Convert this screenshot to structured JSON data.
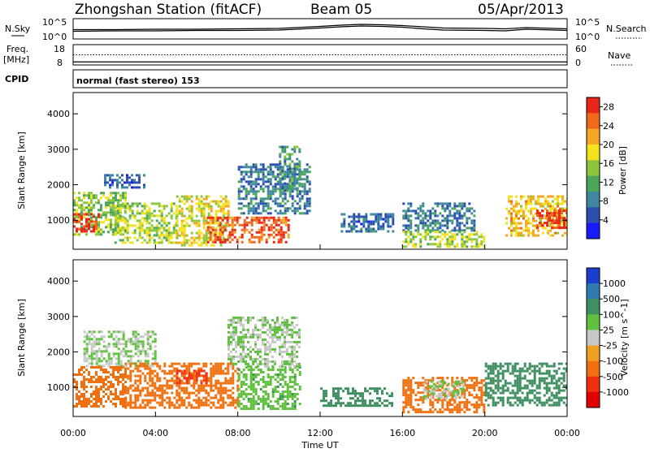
{
  "header": {
    "station": "Zhongshan Station (fitACF)",
    "beam": "Beam 05",
    "date": "05/Apr/2013"
  },
  "chart_data": [
    {
      "type": "line",
      "panel": "noise",
      "left_label": "N.Sky",
      "right_label": "N.Search",
      "left_ticks": [
        "10^5",
        "10^0"
      ],
      "right_ticks": [
        "10^5",
        "10^0"
      ],
      "right_line_style": "dotted",
      "x_hours": [
        0,
        2,
        4,
        6,
        8,
        10,
        12,
        13,
        14,
        15,
        16,
        17,
        18,
        20,
        21,
        22,
        24
      ],
      "series": [
        {
          "values": [
            2.3,
            2.3,
            2.4,
            2.4,
            2.5,
            2.6,
            3.1,
            3.4,
            3.6,
            3.5,
            3.3,
            3.0,
            2.7,
            2.6,
            2.5,
            2.8,
            2.5
          ]
        },
        {
          "values": [
            1.9,
            2.0,
            2.0,
            2.1,
            2.1,
            2.2,
            2.7,
            3.0,
            3.2,
            3.1,
            2.9,
            2.5,
            2.2,
            2.1,
            2.0,
            2.4,
            2.1
          ]
        }
      ]
    },
    {
      "type": "line",
      "panel": "frequency",
      "left_label": "Freq.",
      "left_unit": "[MHz]",
      "right_label": "Nave",
      "left_ticks": [
        "18",
        "8"
      ],
      "right_ticks": [
        "60",
        "0"
      ],
      "freq_mhz": 9.5,
      "nave": 30
    },
    {
      "type": "text",
      "panel": "cpid",
      "label": "CPID",
      "program": "normal (fast stereo) 153"
    },
    {
      "type": "heatmap",
      "panel": "power",
      "ylabel": "Slant Range [km]",
      "colorbar_label": "Power [dB]",
      "yticks": [
        1000,
        2000,
        3000,
        4000
      ],
      "ylim": [
        180,
        4600
      ],
      "colorbar_ticks": [
        "4",
        "8",
        "12",
        "16",
        "20",
        "24",
        "28"
      ],
      "clim": [
        0,
        30
      ],
      "colormap": [
        "#1a1aff",
        "#2a4fb0",
        "#3f86a0",
        "#4aa65a",
        "#8cc63f",
        "#f4e21c",
        "#f5a623",
        "#f06a1a",
        "#e8261a"
      ],
      "segments": [
        {
          "x0": 0.0,
          "x1": 2.5,
          "r0": 600,
          "r1": 1800,
          "level": 14
        },
        {
          "x0": 0.0,
          "x1": 1.2,
          "r0": 700,
          "r1": 1200,
          "level": 28
        },
        {
          "x0": 1.5,
          "x1": 3.5,
          "r0": 1900,
          "r1": 2300,
          "level": 6
        },
        {
          "x0": 2.0,
          "x1": 5.0,
          "r0": 400,
          "r1": 1500,
          "level": 16
        },
        {
          "x0": 5.0,
          "x1": 7.5,
          "r0": 300,
          "r1": 1700,
          "level": 18
        },
        {
          "x0": 6.5,
          "x1": 10.5,
          "r0": 350,
          "r1": 1100,
          "level": 26
        },
        {
          "x0": 8.0,
          "x1": 11.5,
          "r0": 1200,
          "r1": 2600,
          "level": 8
        },
        {
          "x0": 10.0,
          "x1": 11.0,
          "r0": 1800,
          "r1": 3100,
          "level": 10
        },
        {
          "x0": 13.0,
          "x1": 15.5,
          "r0": 700,
          "r1": 1200,
          "level": 7
        },
        {
          "x0": 16.0,
          "x1": 19.5,
          "r0": 700,
          "r1": 1500,
          "level": 8
        },
        {
          "x0": 16.0,
          "x1": 20.0,
          "r0": 250,
          "r1": 700,
          "level": 16
        },
        {
          "x0": 21.0,
          "x1": 24.0,
          "r0": 600,
          "r1": 1700,
          "level": 20
        },
        {
          "x0": 22.5,
          "x1": 24.0,
          "r0": 800,
          "r1": 1300,
          "level": 28
        }
      ]
    },
    {
      "type": "heatmap",
      "panel": "velocity",
      "ylabel": "Slant Range [km]",
      "colorbar_label": "Velocity [m s^-1]",
      "yticks": [
        1000,
        2000,
        3000,
        4000
      ],
      "ylim": [
        180,
        4600
      ],
      "colorbar_ticks": [
        "1000",
        "500",
        "100",
        "25",
        "-25",
        "-100",
        "-500",
        "-1000"
      ],
      "colormap": [
        "#1a3fcf",
        "#2f7ab0",
        "#3f9060",
        "#60c040",
        "#c8c8c8",
        "#f0a020",
        "#f07010",
        "#f03010",
        "#e00000"
      ],
      "segments": [
        {
          "x0": 0.5,
          "x1": 4.0,
          "r0": 1600,
          "r1": 2600,
          "level": 25
        },
        {
          "x0": 0.0,
          "x1": 2.5,
          "r0": 500,
          "r1": 1600,
          "level": -300
        },
        {
          "x0": 2.5,
          "x1": 8.0,
          "r0": 400,
          "r1": 1700,
          "level": -200
        },
        {
          "x0": 5.0,
          "x1": 6.5,
          "r0": 1100,
          "r1": 1500,
          "level": -600
        },
        {
          "x0": 8.0,
          "x1": 11.0,
          "r0": 400,
          "r1": 1600,
          "level": 80
        },
        {
          "x0": 7.5,
          "x1": 11.0,
          "r0": 1600,
          "r1": 3000,
          "level": 25
        },
        {
          "x0": 12.0,
          "x1": 15.5,
          "r0": 500,
          "r1": 1000,
          "level": 300
        },
        {
          "x0": 16.0,
          "x1": 20.0,
          "r0": 300,
          "r1": 1300,
          "level": -200
        },
        {
          "x0": 17.0,
          "x1": 19.0,
          "r0": 700,
          "r1": 1200,
          "level": 25
        },
        {
          "x0": 20.0,
          "x1": 24.0,
          "r0": 500,
          "r1": 1700,
          "level": 300
        }
      ]
    }
  ],
  "x_axis": {
    "ticks": [
      "00:00",
      "04:00",
      "08:00",
      "12:00",
      "16:00",
      "20:00",
      "00:00"
    ],
    "xlabel": "Time UT",
    "xlim_hours": [
      0,
      24
    ]
  }
}
